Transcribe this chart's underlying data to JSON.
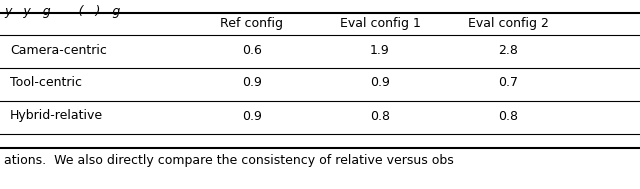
{
  "col_headers": [
    "",
    "Ref config",
    "Eval config 1",
    "Eval config 2"
  ],
  "rows": [
    [
      "Camera-centric",
      "0.6",
      "1.9",
      "2.8"
    ],
    [
      "Tool-centric",
      "0.9",
      "0.9",
      "0.7"
    ],
    [
      "Hybrid-relative",
      "0.9",
      "0.8",
      "0.8"
    ]
  ],
  "top_partial_text": "y   y   g       (   )   g",
  "bottom_partial_text": "ations.  We also directly compare the consistency of relative versus obs",
  "bg_color": "#ffffff",
  "text_color": "#000000",
  "font_size": 9.0
}
